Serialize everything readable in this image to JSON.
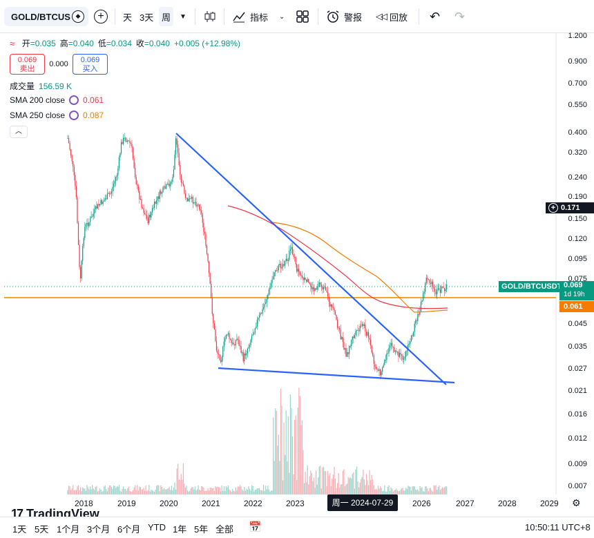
{
  "toolbar": {
    "symbol": "GOLD/BTCUS",
    "interval_1": "天",
    "interval_2": "3天",
    "interval_3": "周",
    "indicators_label": "指标",
    "alert_label": "警报",
    "replay_label": "回放"
  },
  "legend": {
    "open_label": "开",
    "open_value": "=0.035",
    "high_label": "高",
    "high_value": "=0.040",
    "low_label": "低",
    "low_value": "=0.034",
    "close_label": "收",
    "close_value": "=0.040",
    "change": "+0.005 (+12.98%)",
    "sell_price": "0.069",
    "sell_label": "卖出",
    "spread": "0.000",
    "buy_price": "0.069",
    "buy_label": "买入",
    "volume_label": "成交量",
    "volume_value": "156.59 K",
    "sma200_label": "SMA 200 close",
    "sma200_value": "0.061",
    "sma250_label": "SMA 250 close",
    "sma250_value": "0.087"
  },
  "price_axis": [
    "1.200",
    "0.900",
    "0.700",
    "0.550",
    "0.400",
    "0.320",
    "0.240",
    "0.190",
    "0.150",
    "0.120",
    "0.095",
    "0.075",
    "0.045",
    "0.035",
    "0.027",
    "0.021",
    "0.016",
    "0.012",
    "0.009",
    "0.007"
  ],
  "price_tags": {
    "crosshair_price": "0.171",
    "symbol_tag": "GOLD/BTCUSDT",
    "last_price": "0.069",
    "countdown": "1d 19h",
    "sma_price": "0.061"
  },
  "time_axis": [
    "2018",
    "2019",
    "2020",
    "2021",
    "2022",
    "2023",
    "2026",
    "2027",
    "2028",
    "2029"
  ],
  "crosshair_time": "周一 2024-07-29",
  "bottom": {
    "ranges": [
      "1天",
      "5天",
      "1个月",
      "3个月",
      "6个月",
      "YTD",
      "1年",
      "5年",
      "全部"
    ],
    "clock": "10:50:11 UTC+8"
  },
  "brand": "TradingView",
  "colors": {
    "up": "#089981",
    "down": "#f23645",
    "trendline": "#2962ff",
    "sma200": "#f23645",
    "sma250": "#f57c00",
    "hline": "#f5a623"
  }
}
